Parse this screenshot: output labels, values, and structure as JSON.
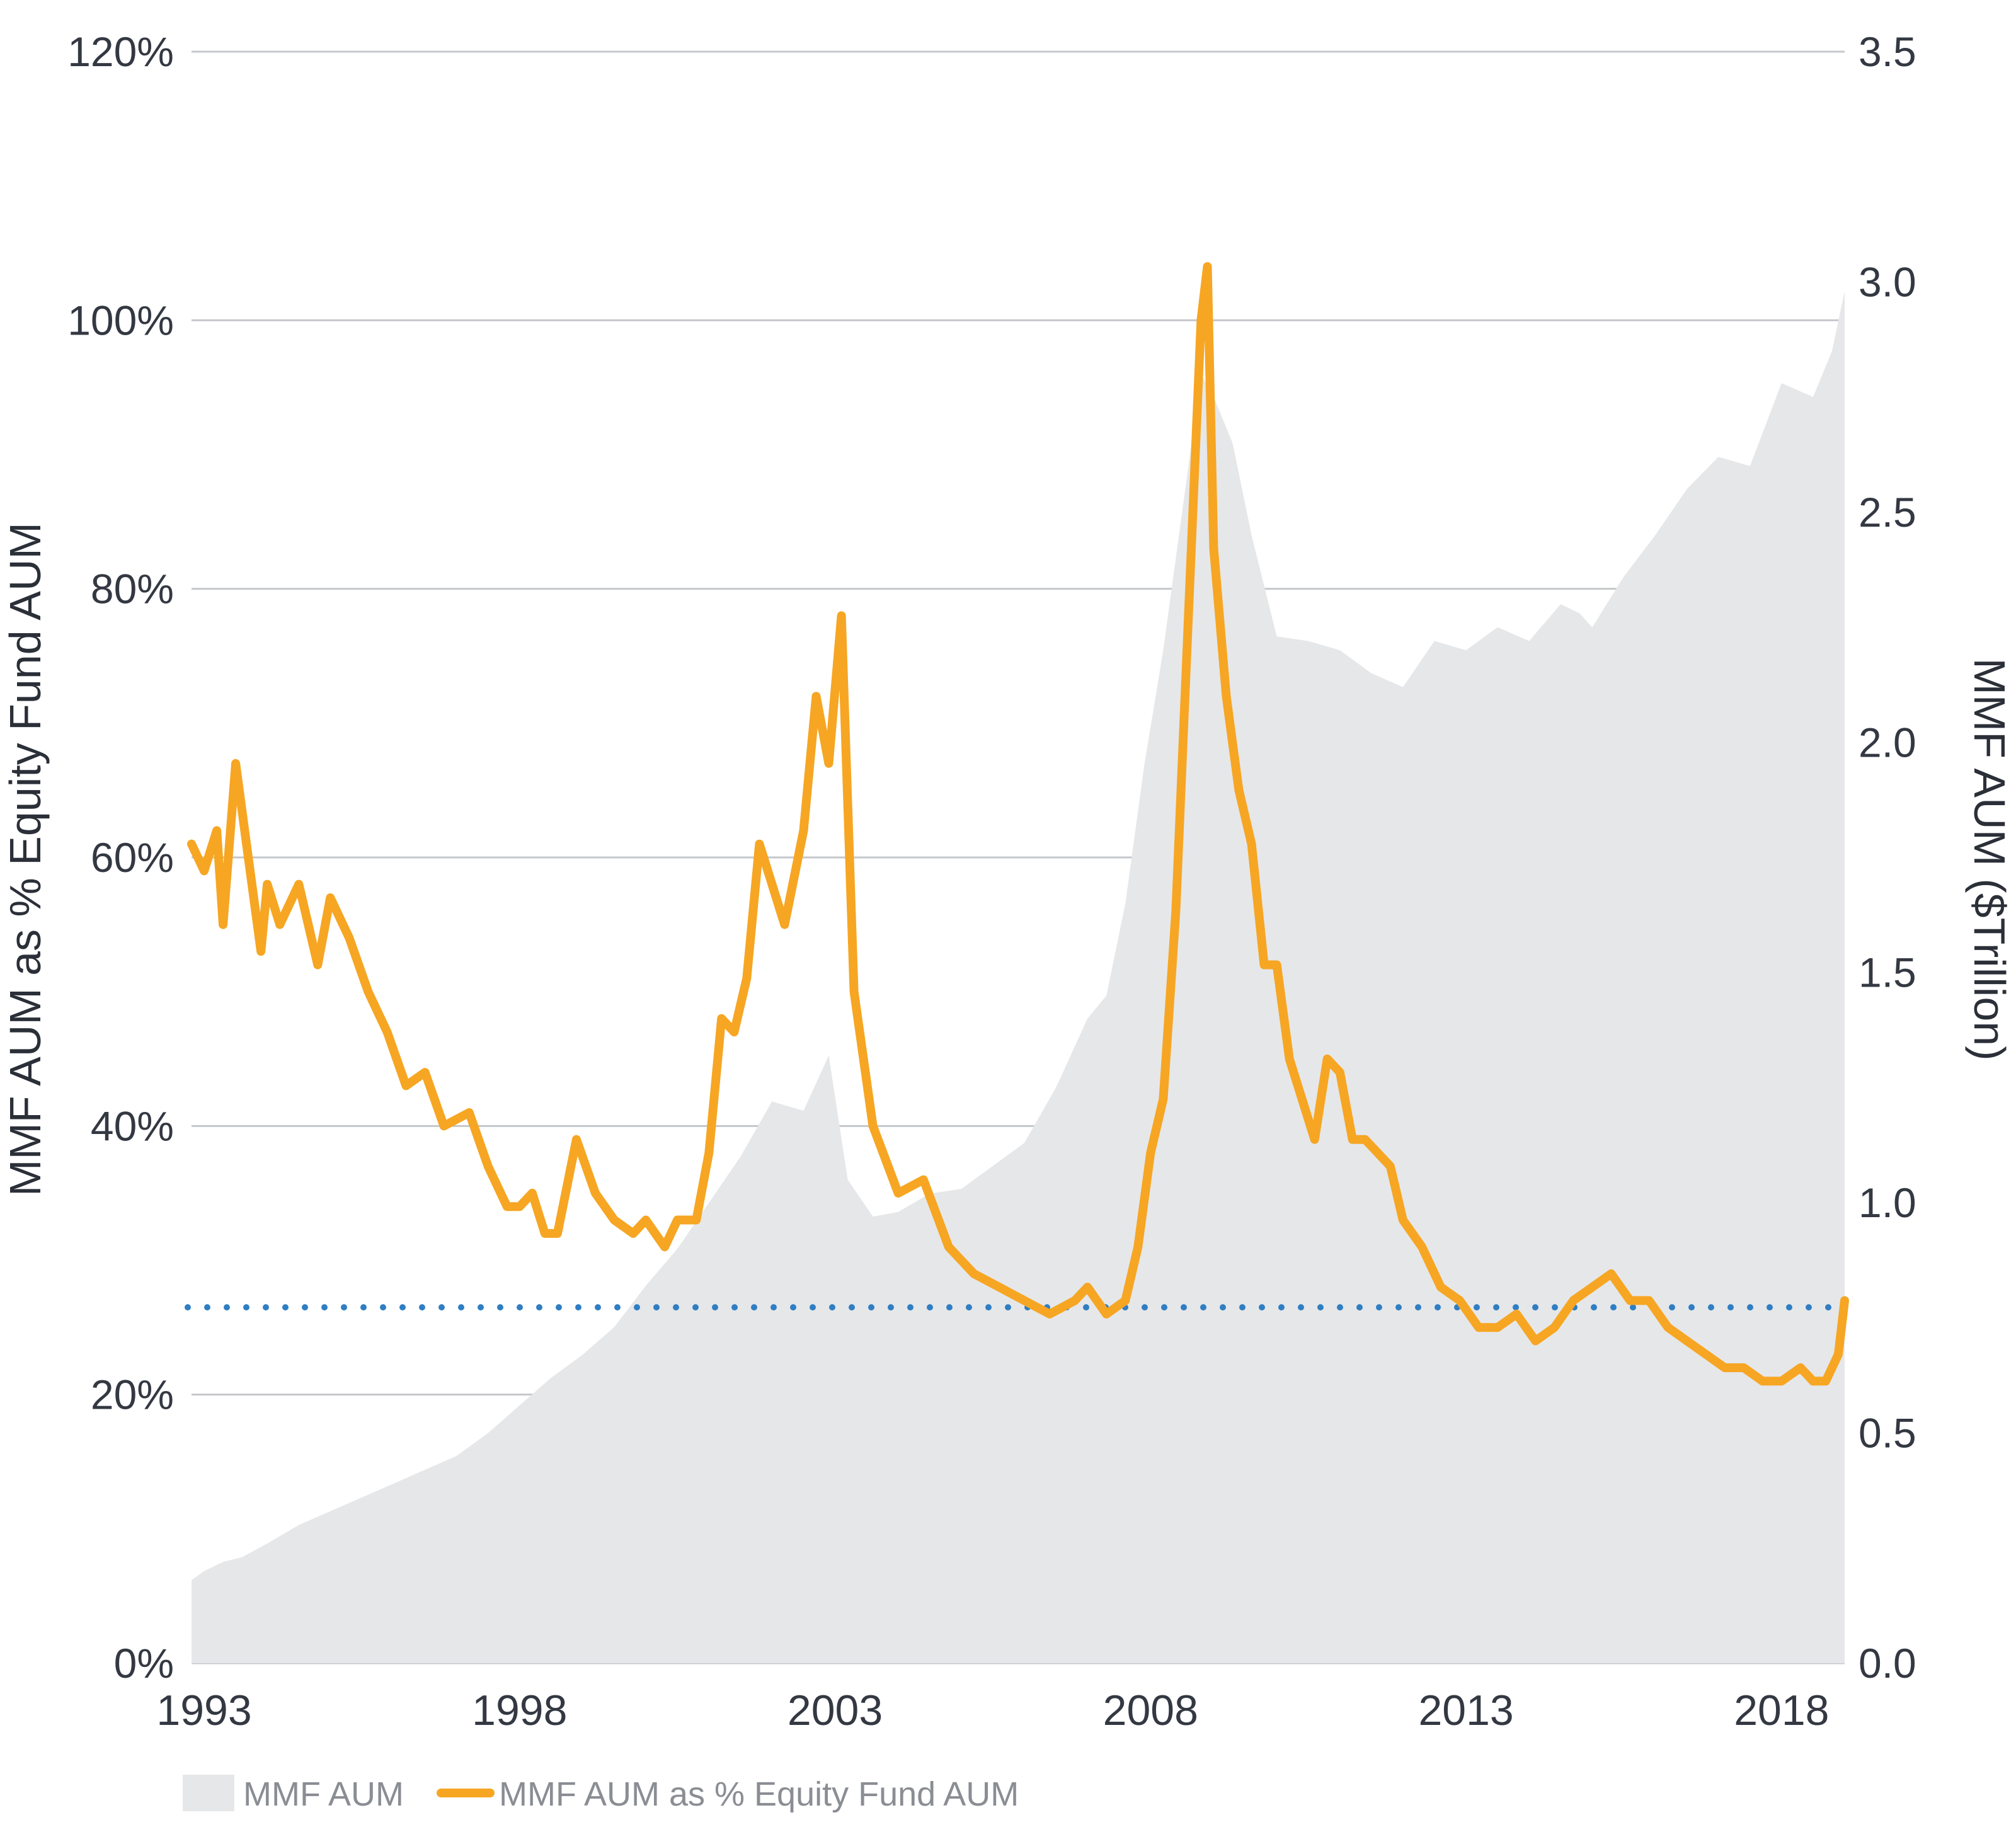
{
  "chart_data": {
    "type": "line",
    "title": "",
    "x_axis": {
      "ticks": [
        "1993",
        "1998",
        "2003",
        "2008",
        "2013",
        "2018"
      ],
      "range": [
        1992.8,
        2019.0
      ]
    },
    "y_left": {
      "label": "MMF AUM as % Equity Fund AUM",
      "ticks": [
        "0%",
        "20%",
        "40%",
        "60%",
        "80%",
        "100%",
        "120%"
      ],
      "range": [
        0,
        120
      ]
    },
    "y_right": {
      "label": "MMF AUM ($Trillion)",
      "ticks": [
        "0.0",
        "0.5",
        "1.0",
        "1.5",
        "2.0",
        "2.5",
        "3.0",
        "3.5"
      ],
      "range": [
        0,
        3.5
      ]
    },
    "grid": "horizontal",
    "legend": {
      "position": "bottom-left",
      "entries": [
        "MMF AUM",
        "MMF AUM as % Equity Fund AUM"
      ]
    },
    "reference_line": {
      "value": 26.5,
      "axis": "left",
      "style": "dotted"
    },
    "colors": {
      "area": "#e6e7e9",
      "line": "#f6a623",
      "reference": "#2e7ec3",
      "grid": "#c5c7ca"
    },
    "series": [
      {
        "name": "MMF AUM",
        "kind": "area",
        "axis": "right",
        "x": [
          1992.8,
          1993.0,
          1993.3,
          1993.6,
          1994.0,
          1994.5,
          1995.0,
          1995.5,
          1996.0,
          1996.5,
          1997.0,
          1997.5,
          1998.0,
          1998.5,
          1999.0,
          1999.5,
          2000.0,
          2000.5,
          2001.0,
          2001.5,
          2002.0,
          2002.5,
          2002.9,
          2003.2,
          2003.6,
          2004.0,
          2004.5,
          2005.0,
          2005.5,
          2006.0,
          2006.5,
          2007.0,
          2007.3,
          2007.6,
          2007.9,
          2008.2,
          2008.5,
          2008.8,
          2009.0,
          2009.3,
          2009.6,
          2010.0,
          2010.5,
          2011.0,
          2011.5,
          2012.0,
          2012.5,
          2013.0,
          2013.5,
          2014.0,
          2014.5,
          2014.8,
          2015.0,
          2015.5,
          2016.0,
          2016.5,
          2017.0,
          2017.5,
          2018.0,
          2018.5,
          2018.8,
          2019.0
        ],
        "values": [
          0.18,
          0.2,
          0.22,
          0.23,
          0.26,
          0.3,
          0.33,
          0.36,
          0.39,
          0.42,
          0.45,
          0.5,
          0.56,
          0.62,
          0.67,
          0.73,
          0.82,
          0.9,
          1.0,
          1.1,
          1.22,
          1.2,
          1.32,
          1.05,
          0.97,
          0.98,
          1.02,
          1.03,
          1.08,
          1.13,
          1.25,
          1.4,
          1.45,
          1.65,
          1.95,
          2.2,
          2.5,
          2.8,
          2.75,
          2.65,
          2.45,
          2.23,
          2.22,
          2.2,
          2.15,
          2.12,
          2.22,
          2.2,
          2.25,
          2.22,
          2.3,
          2.28,
          2.25,
          2.36,
          2.45,
          2.55,
          2.62,
          2.6,
          2.78,
          2.75,
          2.85,
          2.98
        ]
      },
      {
        "name": "MMF AUM as % Equity Fund AUM",
        "kind": "line",
        "axis": "left",
        "x": [
          1992.8,
          1993.0,
          1993.2,
          1993.3,
          1993.5,
          1993.7,
          1993.9,
          1994.0,
          1994.2,
          1994.5,
          1994.8,
          1995.0,
          1995.3,
          1995.6,
          1995.9,
          1996.2,
          1996.5,
          1996.8,
          1997.2,
          1997.5,
          1997.8,
          1998.0,
          1998.2,
          1998.4,
          1998.6,
          1998.9,
          1999.2,
          1999.5,
          1999.8,
          2000.0,
          2000.3,
          2000.5,
          2000.8,
          2001.0,
          2001.2,
          2001.4,
          2001.6,
          2001.8,
          2002.0,
          2002.2,
          2002.5,
          2002.7,
          2002.9,
          2003.1,
          2003.3,
          2003.6,
          2004.0,
          2004.4,
          2004.8,
          2005.2,
          2005.6,
          2006.0,
          2006.4,
          2006.8,
          2007.0,
          2007.3,
          2007.6,
          2007.8,
          2008.0,
          2008.2,
          2008.4,
          2008.6,
          2008.8,
          2008.9,
          2009.0,
          2009.2,
          2009.4,
          2009.6,
          2009.8,
          2010.0,
          2010.2,
          2010.4,
          2010.6,
          2010.8,
          2011.0,
          2011.2,
          2011.4,
          2011.6,
          2011.8,
          2012.0,
          2012.3,
          2012.6,
          2012.9,
          2013.2,
          2013.5,
          2013.8,
          2014.1,
          2014.4,
          2014.7,
          2015.0,
          2015.3,
          2015.6,
          2015.9,
          2016.2,
          2016.5,
          2016.8,
          2017.1,
          2017.4,
          2017.7,
          2018.0,
          2018.3,
          2018.5,
          2018.7,
          2018.9,
          2019.0
        ],
        "values": [
          61,
          59,
          62,
          55,
          67,
          60,
          53,
          58,
          55,
          58,
          52,
          57,
          54,
          50,
          47,
          43,
          44,
          40,
          41,
          37,
          34,
          34,
          35,
          32,
          32,
          39,
          35,
          33,
          32,
          33,
          31,
          33,
          33,
          38,
          48,
          47,
          51,
          61,
          58,
          55,
          62,
          72,
          67,
          78,
          50,
          40,
          35,
          36,
          31,
          29,
          28,
          27,
          26,
          27,
          28,
          26,
          27,
          31,
          38,
          42,
          56,
          78,
          100,
          104,
          83,
          72,
          65,
          61,
          52,
          52,
          45,
          42,
          39,
          45,
          44,
          39,
          39,
          38,
          37,
          33,
          31,
          28,
          27,
          25,
          25,
          26,
          24,
          25,
          27,
          28,
          29,
          27,
          27,
          25,
          24,
          23,
          22,
          22,
          21,
          21,
          22,
          21,
          21,
          23,
          27
        ]
      }
    ]
  }
}
